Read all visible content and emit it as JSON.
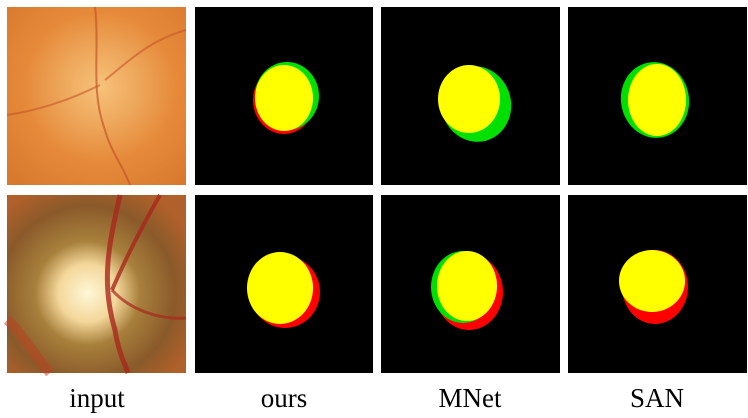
{
  "columns": [
    "input",
    "ours",
    "MNet",
    "SAN"
  ]
}
